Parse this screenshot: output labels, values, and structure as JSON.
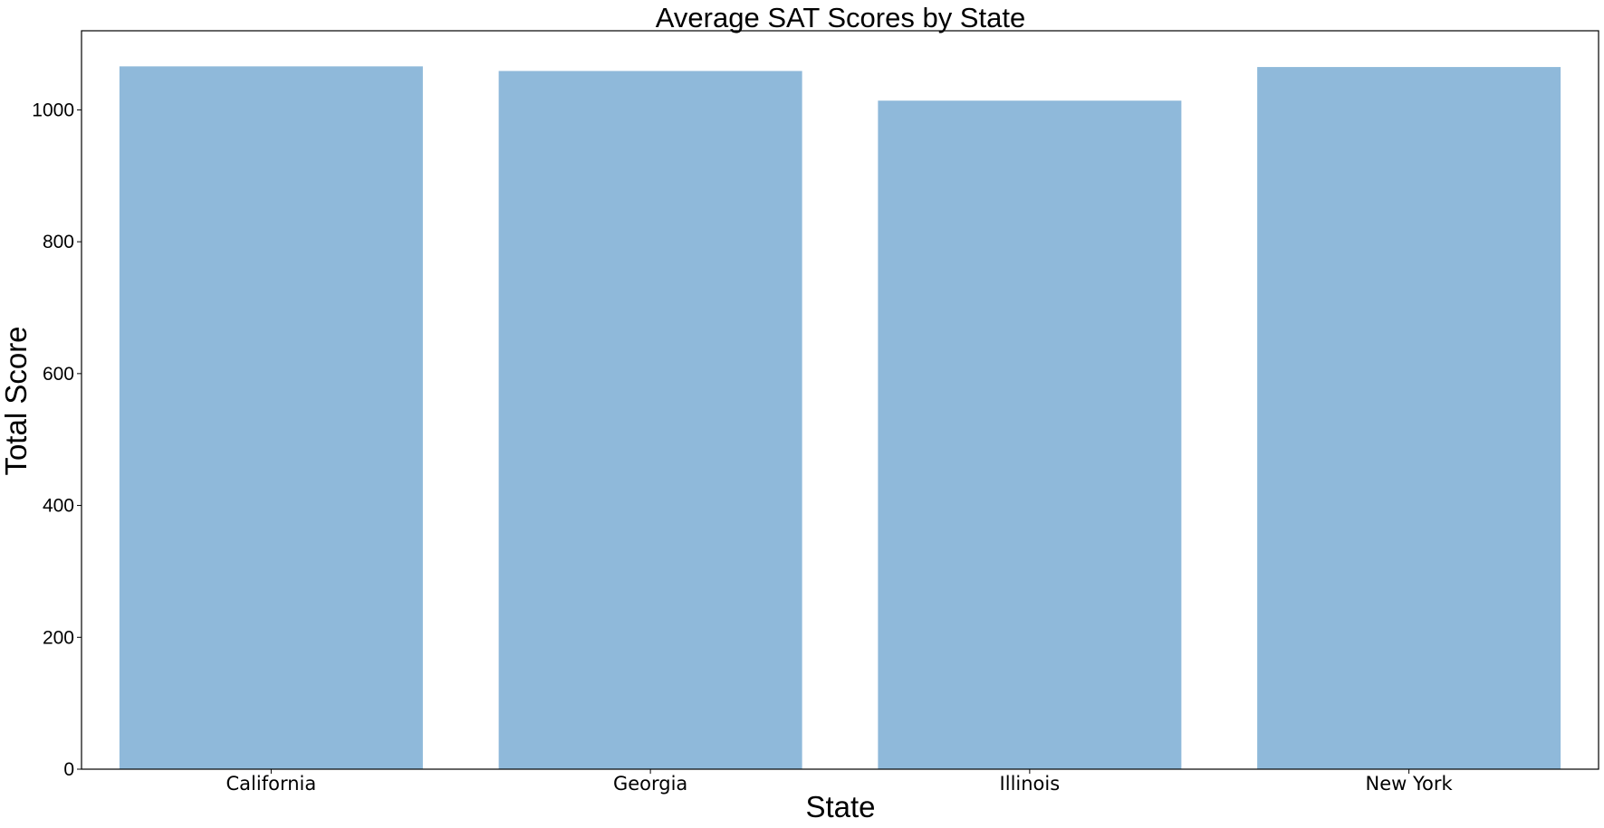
{
  "chart_data": {
    "type": "bar",
    "title": "Average SAT Scores by State",
    "xlabel": "State",
    "ylabel": "Total Score",
    "categories": [
      "California",
      "Georgia",
      "Illinois",
      "New York"
    ],
    "values": [
      1066,
      1059,
      1014,
      1065
    ],
    "ylim": [
      0,
      1120
    ],
    "yticks": [
      0,
      200,
      400,
      600,
      800,
      1000
    ],
    "grid": false,
    "bar_color": "#8fb9da"
  }
}
